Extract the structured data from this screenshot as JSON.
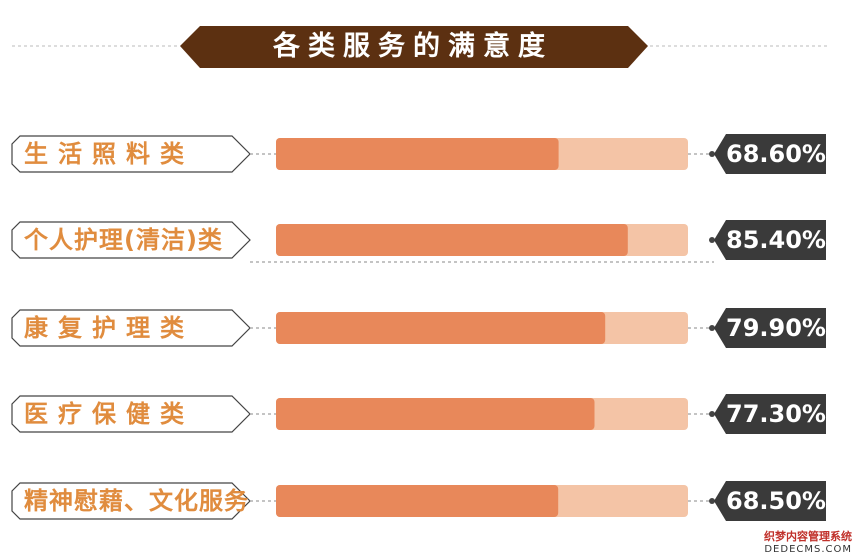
{
  "colors": {
    "banner": "#5c3011",
    "accent": "#e08c3e",
    "bar": "#e8885a",
    "track": "#f4c4a6",
    "value_badge": "#3a3a3a"
  },
  "title": "各类服务的满意度",
  "chart_data": {
    "type": "bar",
    "orientation": "horizontal",
    "title": "各类服务的满意度",
    "categories": [
      "生活照料类",
      "个人护理(清洁)类",
      "康复护理类",
      "医疗保健类",
      "精神慰藉、文化服务"
    ],
    "values": [
      68.6,
      85.4,
      79.9,
      77.3,
      68.5
    ],
    "value_labels": [
      "68.60%",
      "85.40%",
      "79.90%",
      "77.30%",
      "68.50%"
    ],
    "xlim": [
      0,
      100
    ],
    "unit": "%"
  },
  "watermark": {
    "line1": "织梦内容管理系统",
    "line2": "DEDECMS.COM"
  }
}
